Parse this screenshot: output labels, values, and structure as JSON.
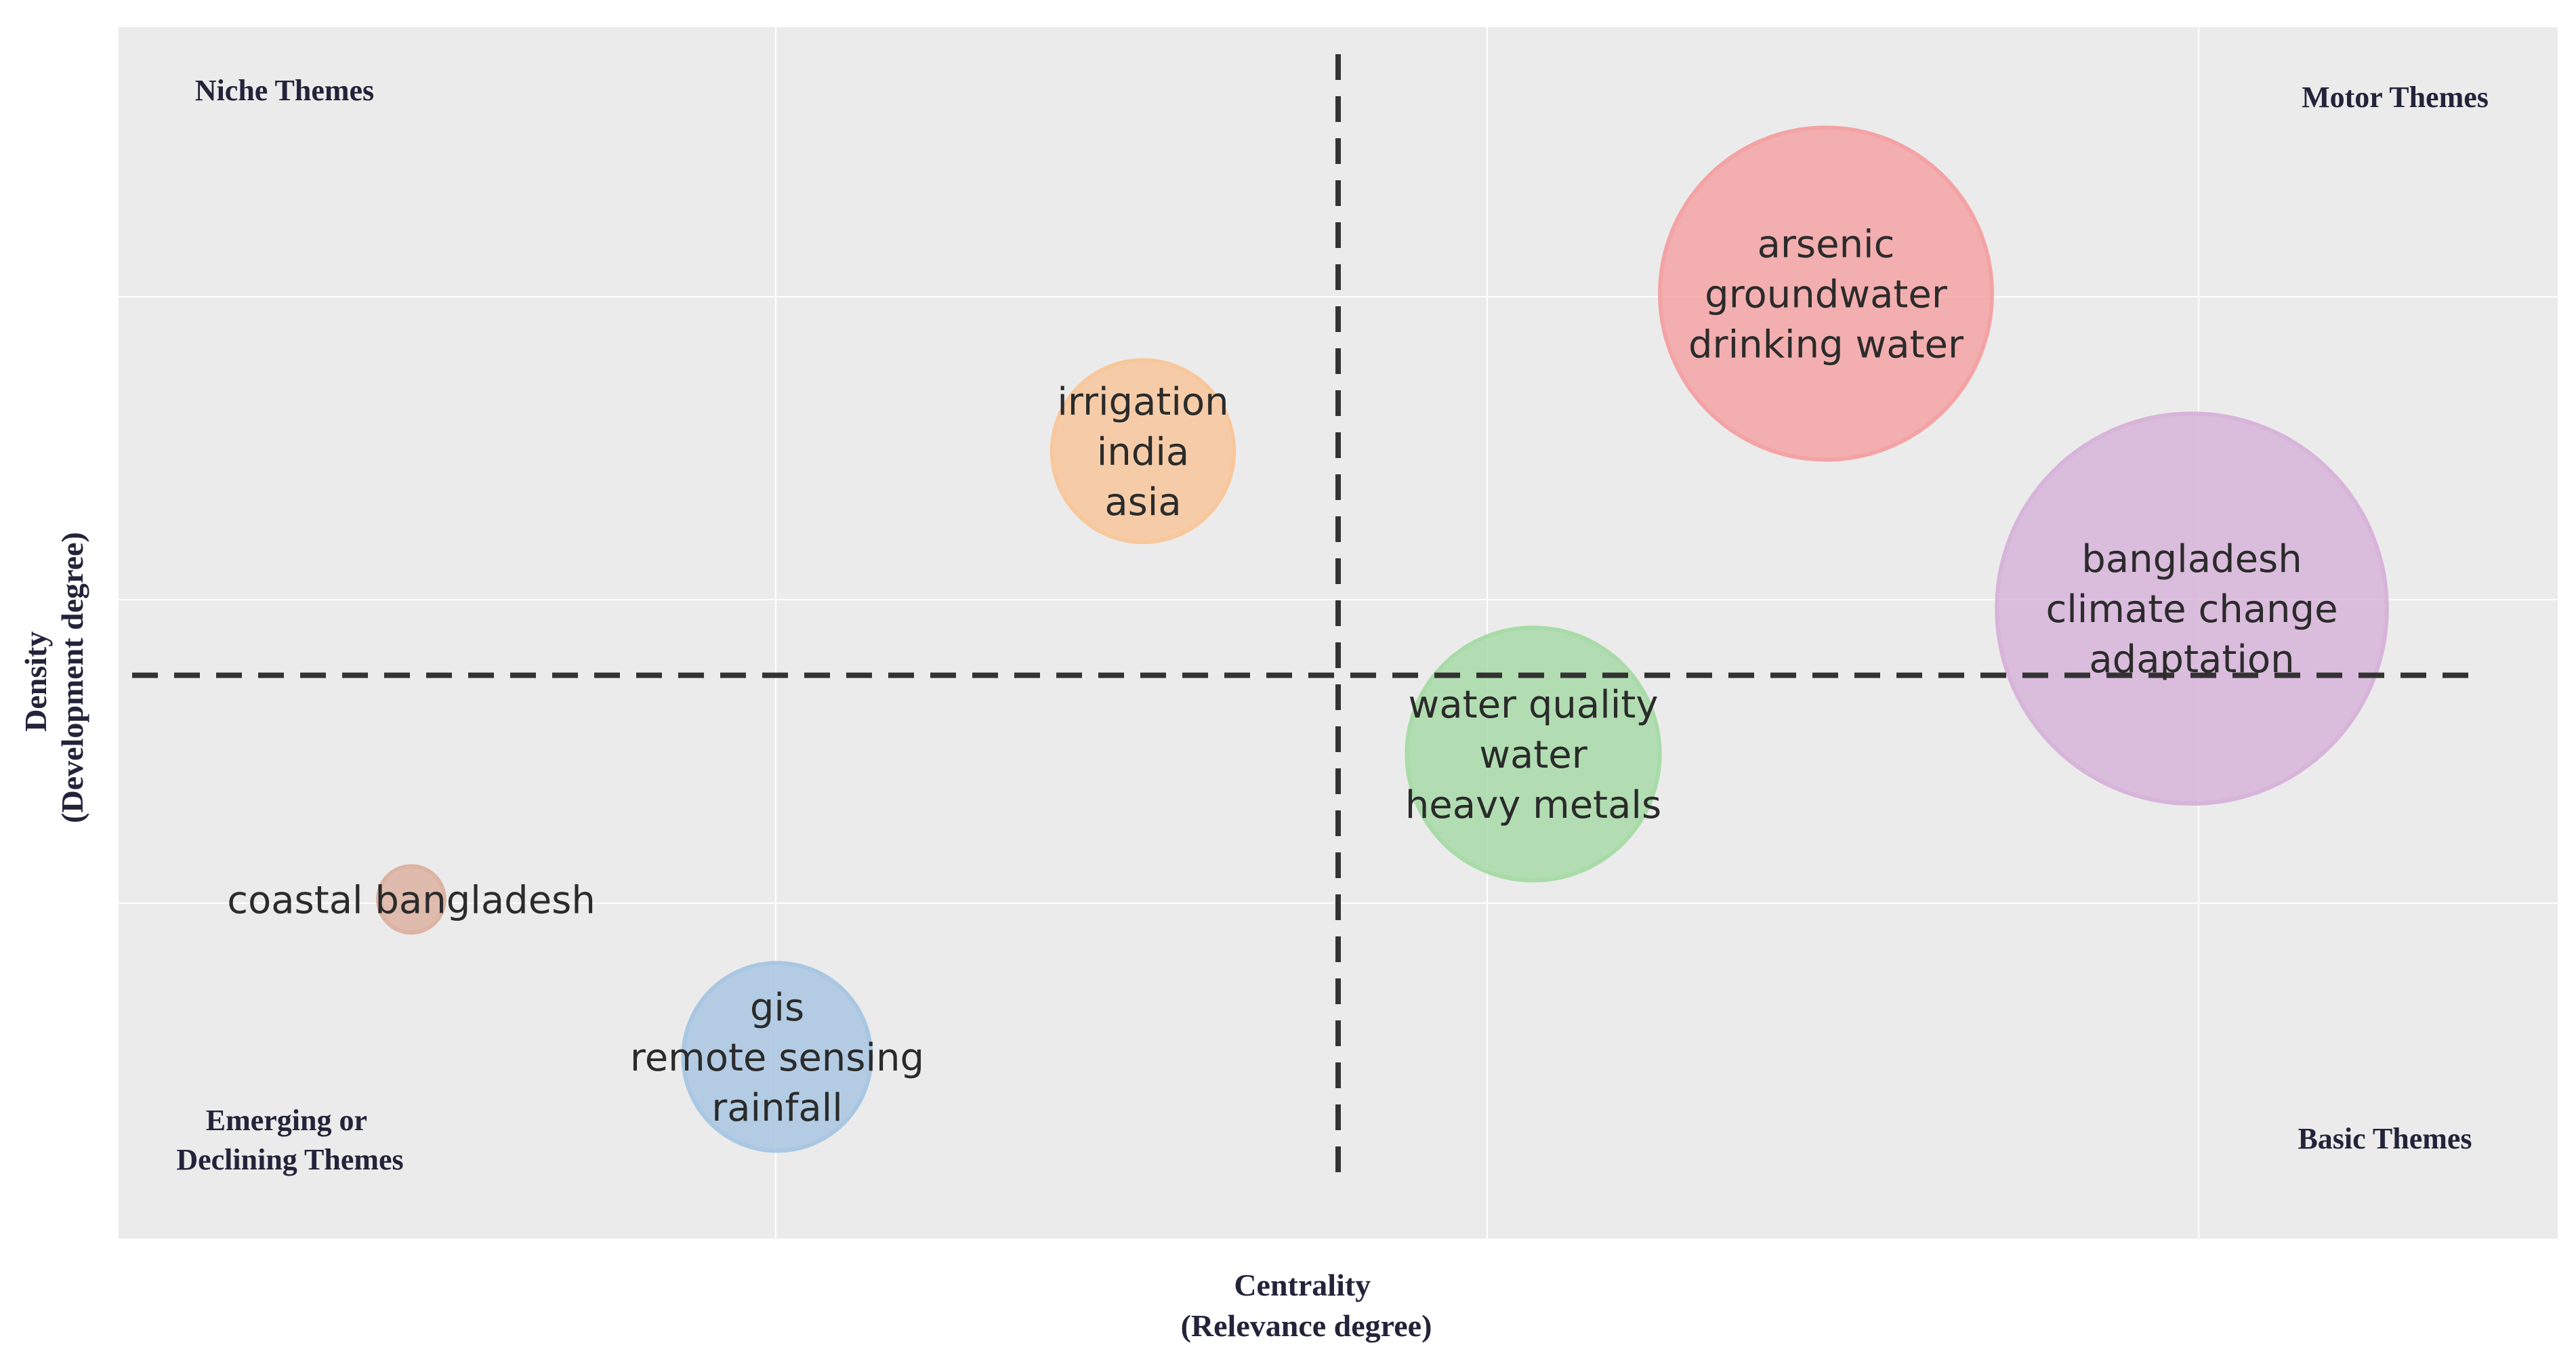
{
  "chart_data": {
    "type": "scatter",
    "subtype": "bubble",
    "title": "",
    "xlabel": [
      "Centrality",
      "(Relevance degree)"
    ],
    "ylabel": [
      "Density",
      "(Development degree)"
    ],
    "grid": true,
    "axis_ticks_shown": false,
    "quadrant_labels": {
      "top_left": [
        "Niche Themes"
      ],
      "top_right": [
        "Motor Themes"
      ],
      "bottom_left": [
        "Emerging or",
        "Declining Themes"
      ],
      "bottom_right": [
        "Basic Themes"
      ]
    },
    "bubbles": [
      {
        "terms": [
          "arsenic",
          "groundwater",
          "drinking water"
        ],
        "x": 0.7,
        "y": 0.78,
        "size": 1.0,
        "color": "#f4a3a5"
      },
      {
        "terms": [
          "bangladesh",
          "climate change",
          "adaptation"
        ],
        "x": 0.85,
        "y": 0.52,
        "size": 1.38,
        "color": "#d7b4d9"
      },
      {
        "terms": [
          "irrigation",
          "india",
          "asia"
        ],
        "x": 0.42,
        "y": 0.65,
        "size": 0.3,
        "color": "#f8c79c"
      },
      {
        "terms": [
          "water quality",
          "water",
          "heavy metals"
        ],
        "x": 0.58,
        "y": 0.4,
        "size": 0.58,
        "color": "#a8dba8"
      },
      {
        "terms": [
          "gis",
          "remote sensing",
          "rainfall"
        ],
        "x": 0.27,
        "y": 0.15,
        "size": 0.32,
        "color": "#a9c7e3"
      },
      {
        "terms": [
          "coastal bangladesh"
        ],
        "x": 0.12,
        "y": 0.28,
        "size": 0.04,
        "color": "#ddb3a3"
      }
    ],
    "reference_lines": {
      "x": 0.5,
      "y": 0.465,
      "style": "dashed"
    }
  },
  "colors": {
    "panel": "#ebebeb",
    "grid": "#ffffff",
    "reference_line": "#333333"
  }
}
